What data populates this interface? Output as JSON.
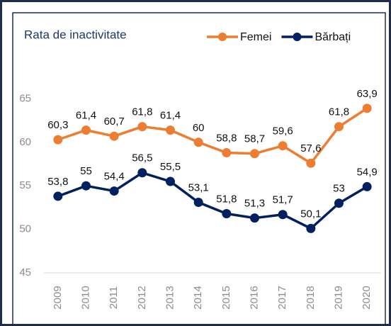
{
  "chart_data": {
    "type": "line",
    "title": "Rata de inactivitate",
    "categories": [
      "2009",
      "2010",
      "2011",
      "2012",
      "2013",
      "2014",
      "2015",
      "2016",
      "2017",
      "2018",
      "2019",
      "2020"
    ],
    "series": [
      {
        "name": "Femei",
        "color": "#ED7D31",
        "values": [
          60.3,
          61.4,
          60.7,
          61.8,
          61.4,
          60,
          58.8,
          58.7,
          59.6,
          57.6,
          61.8,
          63.9
        ],
        "value_labels": [
          "60,3",
          "61,4",
          "60,7",
          "61,8",
          "61,4",
          "60",
          "58,8",
          "58,7",
          "59,6",
          "57,6",
          "61,8",
          "63,9"
        ]
      },
      {
        "name": "Bărbați",
        "color": "#002060",
        "values": [
          53.8,
          55,
          54.4,
          56.5,
          55.5,
          53.1,
          51.8,
          51.3,
          51.7,
          50.1,
          53,
          54.9
        ],
        "value_labels": [
          "53,8",
          "55",
          "54,4",
          "56,5",
          "55,5",
          "53,1",
          "51,8",
          "51,3",
          "51,7",
          "50,1",
          "53",
          "54,9"
        ]
      }
    ],
    "ylim": [
      45,
      70
    ],
    "yticks": [
      45,
      50,
      55,
      60,
      65
    ],
    "grid": false,
    "legend": "top-right"
  }
}
